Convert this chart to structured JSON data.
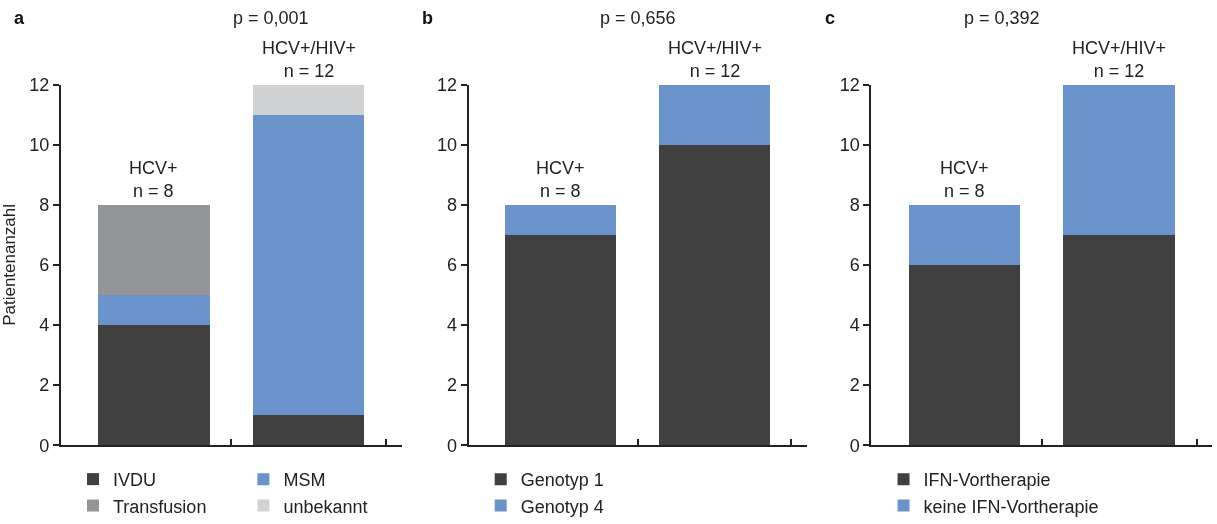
{
  "chart_data": [
    {
      "type": "bar",
      "stacked": true,
      "title": "p = 0,001",
      "ylabel": "Patientenanzahl",
      "categories": [
        null,
        null
      ],
      "ylim": [
        0,
        12
      ],
      "yticks": [
        0,
        2,
        4,
        6,
        8,
        10,
        12
      ],
      "legend": "bottom",
      "annotations": [
        "a",
        {
          "text": "HCV+\nn = 8",
          "y": 8
        },
        {
          "text": "HCV+/HIV+\nn = 12",
          "y": 12
        }
      ],
      "series": [
        {
          "name": "IVDU",
          "color": "#404040",
          "values": [
            4,
            1
          ]
        },
        {
          "name": "MSM",
          "color": "#6a93cc",
          "values": [
            1,
            10
          ]
        },
        {
          "name": "Transfusion",
          "color": "#939598",
          "values": [
            3,
            0
          ]
        },
        {
          "name": "unbekannt",
          "color": "#d1d2d4",
          "values": [
            0,
            1
          ]
        }
      ]
    },
    {
      "type": "bar",
      "stacked": true,
      "title": "p = 0,656",
      "categories": [
        null,
        null
      ],
      "ylim": [
        0,
        12
      ],
      "yticks": [
        0,
        2,
        4,
        6,
        8,
        10,
        12
      ],
      "legend": "bottom",
      "annotations": [
        "b",
        {
          "text": "HCV+\nn = 8",
          "y": 8
        },
        {
          "text": "HCV+/HIV+\nn = 12",
          "y": 12
        }
      ],
      "series": [
        {
          "name": "Genotyp 1",
          "color": "#404040",
          "values": [
            7,
            10
          ]
        },
        {
          "name": "Genotyp 4",
          "color": "#6a93cc",
          "values": [
            1,
            2
          ]
        }
      ]
    },
    {
      "type": "bar",
      "stacked": true,
      "title": "p = 0,392",
      "categories": [
        null,
        null
      ],
      "ylim": [
        0,
        12
      ],
      "yticks": [
        0,
        2,
        4,
        6,
        8,
        10,
        12
      ],
      "legend": "bottom",
      "annotations": [
        "c",
        {
          "text": "HCV+\nn = 8",
          "y": 8
        },
        {
          "text": "HCV+/HIV+\nn = 12",
          "y": 12
        }
      ],
      "series": [
        {
          "name": "IFN-Vortherapie",
          "color": "#404040",
          "values": [
            6,
            7
          ]
        },
        {
          "name": "keine IFN-Vortherapie",
          "color": "#6a93cc",
          "values": [
            2,
            5
          ]
        }
      ]
    }
  ]
}
